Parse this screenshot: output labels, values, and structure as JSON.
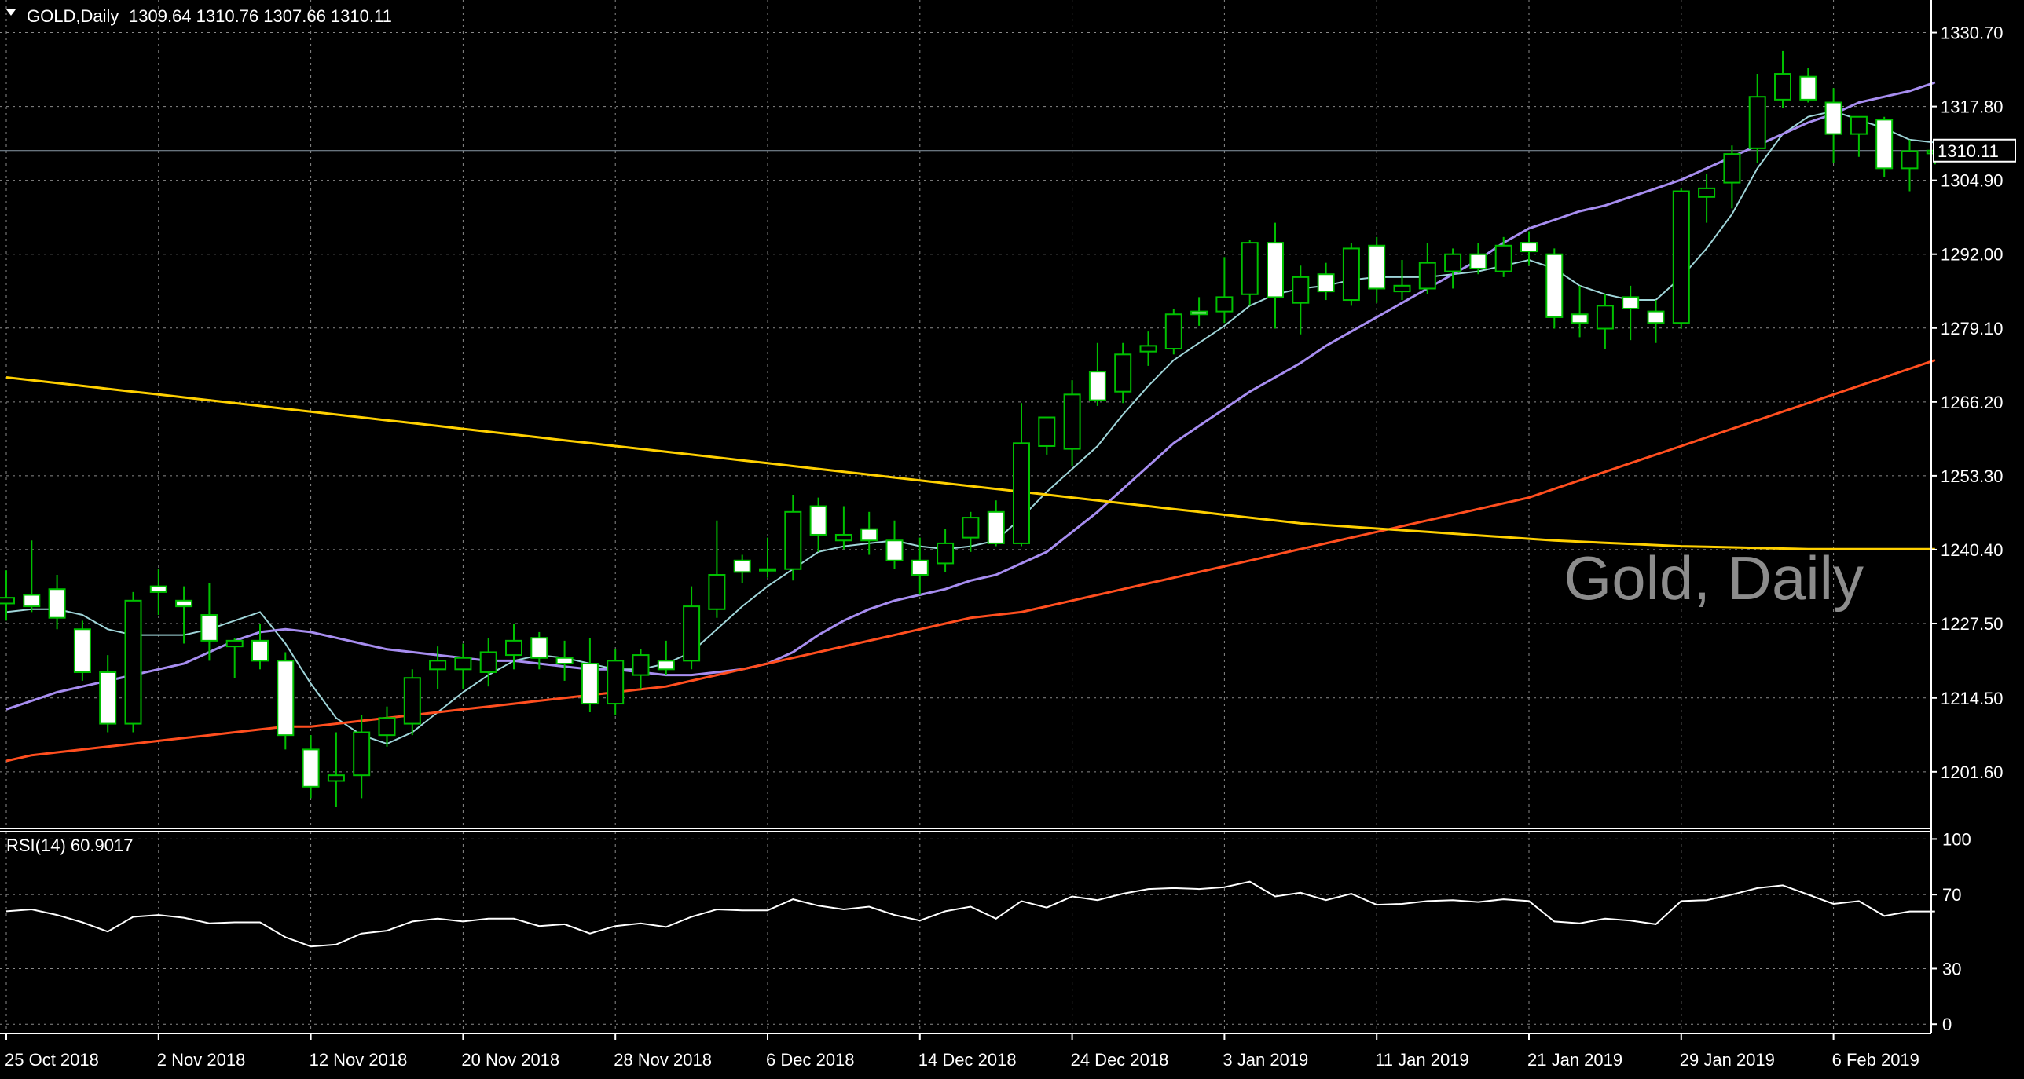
{
  "header": {
    "symbol_label": "GOLD,Daily",
    "ohlc_label": "1309.64 1310.76 1307.66 1310.11",
    "watermark": "Gold, Daily",
    "current_price_label": "1310.11"
  },
  "rsi_header": {
    "label": "RSI(14) 60.9017"
  },
  "colors": {
    "background": "#000000",
    "grid": "#8a8a8a",
    "axis_text": "#ffffff",
    "bull_candle": "#00c000",
    "bear_candle": "#ffffff",
    "ma_fast": "#9fd5d9",
    "ma_mid": "#a78df0",
    "ma_slow": "#ff4e1f",
    "ma_long": "#ffd000",
    "rsi_line": "#ffffff",
    "watermark": "#8c8c8c"
  },
  "chart_data": [
    {
      "type": "candlestick",
      "title": "GOLD,Daily",
      "ylim": [
        1191.7,
        1336.4
      ],
      "y_ticks": [
        "1330.70",
        "1317.80",
        "1304.90",
        "1292.00",
        "1279.10",
        "1266.20",
        "1253.30",
        "1240.40",
        "1227.50",
        "1214.50",
        "1201.60"
      ],
      "x_ticks": [
        {
          "index": 0,
          "label": "25 Oct 2018"
        },
        {
          "index": 6,
          "label": "2 Nov 2018"
        },
        {
          "index": 12,
          "label": "12 Nov 2018"
        },
        {
          "index": 18,
          "label": "20 Nov 2018"
        },
        {
          "index": 24,
          "label": "28 Nov 2018"
        },
        {
          "index": 30,
          "label": "6 Dec 2018"
        },
        {
          "index": 36,
          "label": "14 Dec 2018"
        },
        {
          "index": 42,
          "label": "24 Dec 2018"
        },
        {
          "index": 48,
          "label": "3 Jan 2019"
        },
        {
          "index": 54,
          "label": "11 Jan 2019"
        },
        {
          "index": 60,
          "label": "21 Jan 2019"
        },
        {
          "index": 66,
          "label": "29 Jan 2019"
        },
        {
          "index": 72,
          "label": "6 Feb 2019"
        }
      ],
      "ohlc": [
        [
          1231.0,
          1236.8,
          1228.0,
          1232.0
        ],
        [
          1232.5,
          1242.0,
          1229.5,
          1230.5
        ],
        [
          1233.5,
          1236.0,
          1226.5,
          1228.5
        ],
        [
          1226.5,
          1228.0,
          1217.5,
          1219.0
        ],
        [
          1219.0,
          1222.0,
          1208.5,
          1210.0
        ],
        [
          1210.0,
          1233.0,
          1208.5,
          1231.5
        ],
        [
          1234.0,
          1237.0,
          1229.0,
          1233.0
        ],
        [
          1231.5,
          1234.0,
          1224.0,
          1230.5
        ],
        [
          1229.0,
          1234.5,
          1221.0,
          1224.5
        ],
        [
          1223.5,
          1225.0,
          1218.0,
          1224.5
        ],
        [
          1224.5,
          1227.5,
          1219.5,
          1221.0
        ],
        [
          1221.0,
          1222.5,
          1205.5,
          1208.0
        ],
        [
          1205.5,
          1208.0,
          1197.0,
          1199.0
        ],
        [
          1200.0,
          1208.5,
          1195.5,
          1201.0
        ],
        [
          1201.0,
          1211.5,
          1197.0,
          1208.5
        ],
        [
          1208.0,
          1213.0,
          1206.0,
          1211.0
        ],
        [
          1210.0,
          1219.5,
          1208.0,
          1218.0
        ],
        [
          1219.5,
          1223.5,
          1216.0,
          1221.0
        ],
        [
          1219.5,
          1224.0,
          1216.0,
          1221.5
        ],
        [
          1219.0,
          1225.0,
          1216.5,
          1222.5
        ],
        [
          1222.0,
          1227.5,
          1219.5,
          1224.5
        ],
        [
          1225.0,
          1226.0,
          1219.5,
          1221.5
        ],
        [
          1221.5,
          1224.5,
          1217.5,
          1220.5
        ],
        [
          1220.5,
          1225.0,
          1212.0,
          1213.5
        ],
        [
          1213.5,
          1223.0,
          1211.5,
          1221.0
        ],
        [
          1218.5,
          1223.0,
          1216.0,
          1222.0
        ],
        [
          1221.0,
          1224.5,
          1218.5,
          1219.5
        ],
        [
          1221.0,
          1234.0,
          1219.5,
          1230.5
        ],
        [
          1230.0,
          1245.5,
          1228.5,
          1236.0
        ],
        [
          1238.5,
          1239.5,
          1234.5,
          1236.5
        ],
        [
          1237.0,
          1242.5,
          1235.5,
          1237.0
        ],
        [
          1237.0,
          1250.0,
          1235.0,
          1247.0
        ],
        [
          1248.0,
          1249.5,
          1240.0,
          1243.0
        ],
        [
          1242.0,
          1248.0,
          1240.5,
          1243.0
        ],
        [
          1244.0,
          1247.0,
          1239.5,
          1242.0
        ],
        [
          1242.0,
          1245.5,
          1237.0,
          1238.5
        ],
        [
          1238.5,
          1242.5,
          1232.5,
          1236.0
        ],
        [
          1238.0,
          1244.0,
          1236.5,
          1241.5
        ],
        [
          1242.5,
          1247.0,
          1240.0,
          1246.0
        ],
        [
          1247.0,
          1249.0,
          1241.0,
          1241.5
        ],
        [
          1241.5,
          1266.0,
          1241.0,
          1259.0
        ],
        [
          1258.5,
          1263.5,
          1257.0,
          1263.5
        ],
        [
          1258.0,
          1270.0,
          1255.0,
          1267.5
        ],
        [
          1271.5,
          1276.5,
          1265.5,
          1266.5
        ],
        [
          1268.0,
          1276.5,
          1266.0,
          1274.5
        ],
        [
          1275.0,
          1278.5,
          1272.5,
          1276.0
        ],
        [
          1275.5,
          1282.5,
          1274.5,
          1281.5
        ],
        [
          1282.0,
          1284.5,
          1279.5,
          1281.5
        ],
        [
          1282.0,
          1291.5,
          1280.0,
          1284.5
        ],
        [
          1285.0,
          1294.5,
          1283.0,
          1294.0
        ],
        [
          1294.0,
          1297.5,
          1279.0,
          1284.5
        ],
        [
          1283.5,
          1290.0,
          1278.0,
          1288.0
        ],
        [
          1288.5,
          1290.5,
          1284.0,
          1285.5
        ],
        [
          1284.0,
          1294.0,
          1283.0,
          1293.0
        ],
        [
          1293.5,
          1295.0,
          1283.5,
          1286.0
        ],
        [
          1285.5,
          1291.0,
          1284.0,
          1286.5
        ],
        [
          1286.0,
          1294.0,
          1285.0,
          1290.5
        ],
        [
          1289.0,
          1293.0,
          1286.0,
          1292.0
        ],
        [
          1292.0,
          1294.0,
          1288.5,
          1289.5
        ],
        [
          1289.0,
          1295.0,
          1288.0,
          1293.5
        ],
        [
          1294.0,
          1296.0,
          1290.0,
          1292.5
        ],
        [
          1292.0,
          1293.0,
          1279.0,
          1281.0
        ],
        [
          1281.5,
          1286.5,
          1277.5,
          1280.0
        ],
        [
          1279.0,
          1285.0,
          1275.5,
          1283.0
        ],
        [
          1284.5,
          1286.5,
          1277.0,
          1282.5
        ],
        [
          1282.0,
          1284.0,
          1276.5,
          1280.0
        ],
        [
          1280.0,
          1303.5,
          1279.0,
          1303.0
        ],
        [
          1302.0,
          1306.0,
          1297.5,
          1303.5
        ],
        [
          1304.5,
          1311.0,
          1300.0,
          1309.5
        ],
        [
          1310.5,
          1323.5,
          1308.0,
          1319.5
        ],
        [
          1319.0,
          1327.5,
          1317.5,
          1323.5
        ],
        [
          1323.0,
          1324.5,
          1318.5,
          1319.0
        ],
        [
          1318.5,
          1321.0,
          1308.0,
          1313.0
        ],
        [
          1313.0,
          1316.0,
          1309.0,
          1316.0
        ],
        [
          1315.5,
          1316.0,
          1305.5,
          1307.0
        ],
        [
          1307.0,
          1312.0,
          1303.0,
          1310.0
        ],
        [
          1309.6,
          1310.8,
          1307.7,
          1310.1
        ]
      ],
      "moving_averages": [
        {
          "color": "#9fd5d9",
          "values": [
            1229.5,
            1230.0,
            1230.0,
            1229.0,
            1226.5,
            1225.5,
            1225.5,
            1225.5,
            1226.5,
            1228.0,
            1229.5,
            1224.0,
            1217.0,
            1211.0,
            1208.0,
            1206.5,
            1208.5,
            1212.0,
            1215.5,
            1218.5,
            1221.0,
            1222.0,
            1221.5,
            1220.5,
            1219.5,
            1219.5,
            1220.5,
            1222.5,
            1226.5,
            1230.5,
            1234.0,
            1237.0,
            1240.0,
            1241.0,
            1241.5,
            1242.0,
            1241.0,
            1240.5,
            1241.0,
            1242.0,
            1246.0,
            1250.5,
            1254.5,
            1258.5,
            1264.0,
            1269.0,
            1273.5,
            1276.5,
            1279.5,
            1283.0,
            1285.0,
            1286.0,
            1286.5,
            1287.5,
            1288.0,
            1288.0,
            1288.0,
            1288.5,
            1289.0,
            1290.0,
            1291.0,
            1289.5,
            1286.5,
            1285.0,
            1284.0,
            1284.0,
            1288.0,
            1293.0,
            1299.0,
            1307.0,
            1313.0,
            1316.0,
            1317.0,
            1315.5,
            1314.0,
            1312.0,
            1311.5
          ]
        },
        {
          "color": "#a78df0",
          "values": [
            1212.5,
            1214.0,
            1215.5,
            1216.5,
            1217.5,
            1218.5,
            1219.5,
            1220.5,
            1222.5,
            1224.5,
            1226.0,
            1226.5,
            1226.0,
            1225.0,
            1224.0,
            1223.0,
            1222.5,
            1222.0,
            1221.5,
            1221.0,
            1221.0,
            1220.5,
            1220.0,
            1219.5,
            1219.5,
            1219.0,
            1218.5,
            1218.5,
            1219.0,
            1219.5,
            1220.5,
            1222.5,
            1225.5,
            1228.0,
            1230.0,
            1231.5,
            1232.5,
            1233.5,
            1235.0,
            1236.0,
            1238.0,
            1240.0,
            1243.5,
            1247.0,
            1251.0,
            1255.0,
            1259.0,
            1262.0,
            1265.0,
            1268.0,
            1270.5,
            1273.0,
            1276.0,
            1278.5,
            1281.0,
            1283.5,
            1286.0,
            1288.5,
            1291.0,
            1294.0,
            1296.5,
            1298.0,
            1299.5,
            1300.5,
            1302.0,
            1303.5,
            1305.0,
            1307.0,
            1309.0,
            1311.0,
            1313.0,
            1315.0,
            1316.5,
            1318.5,
            1319.5,
            1320.5,
            1322.0
          ]
        },
        {
          "color": "#ff4e1f",
          "values": [
            1203.5,
            1204.5,
            1205.0,
            1205.5,
            1206.0,
            1206.5,
            1207.0,
            1207.5,
            1208.0,
            1208.5,
            1209.0,
            1209.5,
            1209.5,
            1210.0,
            1210.5,
            1211.0,
            1211.5,
            1212.0,
            1212.5,
            1213.0,
            1213.5,
            1214.0,
            1214.5,
            1215.0,
            1215.5,
            1216.0,
            1216.5,
            1217.5,
            1218.5,
            1219.5,
            1220.5,
            1221.5,
            1222.5,
            1223.5,
            1224.5,
            1225.5,
            1226.5,
            1227.5,
            1228.5,
            1229.0,
            1229.5,
            1230.5,
            1231.5,
            1232.5,
            1233.5,
            1234.5,
            1235.5,
            1236.5,
            1237.5,
            1238.5,
            1239.5,
            1240.5,
            1241.5,
            1242.5,
            1243.5,
            1244.5,
            1245.5,
            1246.5,
            1247.5,
            1248.5,
            1249.5,
            1251.0,
            1252.5,
            1254.0,
            1255.5,
            1257.0,
            1258.5,
            1260.0,
            1261.5,
            1263.0,
            1264.5,
            1266.0,
            1267.5,
            1269.0,
            1270.5,
            1272.0,
            1273.5
          ]
        },
        {
          "color": "#ffd000",
          "values": [
            1270.5,
            1270.0,
            1269.5,
            1269.0,
            1268.5,
            1268.0,
            1267.5,
            1267.0,
            1266.5,
            1266.0,
            1265.5,
            1265.0,
            1264.5,
            1264.0,
            1263.5,
            1263.0,
            1262.5,
            1262.0,
            1261.5,
            1261.0,
            1260.5,
            1260.0,
            1259.5,
            1259.0,
            1258.5,
            1258.0,
            1257.5,
            1257.0,
            1256.5,
            1256.0,
            1255.5,
            1255.0,
            1254.5,
            1254.0,
            1253.5,
            1253.0,
            1252.5,
            1252.0,
            1251.5,
            1251.0,
            1250.5,
            1250.0,
            1249.5,
            1249.0,
            1248.5,
            1248.0,
            1247.5,
            1247.0,
            1246.5,
            1246.0,
            1245.5,
            1245.0,
            1244.7,
            1244.4,
            1244.1,
            1243.8,
            1243.5,
            1243.2,
            1242.9,
            1242.6,
            1242.3,
            1242.0,
            1241.8,
            1241.6,
            1241.4,
            1241.2,
            1241.0,
            1240.9,
            1240.8,
            1240.7,
            1240.6,
            1240.5,
            1240.5,
            1240.5,
            1240.5,
            1240.5,
            1240.5
          ]
        }
      ]
    },
    {
      "type": "line",
      "title": "RSI(14) 60.9017",
      "ylim": [
        -5,
        104
      ],
      "y_ticks": [
        "100",
        "70",
        "30",
        "0"
      ],
      "series": [
        {
          "values": [
            61.0,
            62.0,
            59.0,
            55.0,
            50.0,
            58.0,
            59.0,
            57.5,
            54.5,
            55.0,
            55.0,
            47.0,
            42.0,
            43.0,
            49.0,
            50.5,
            55.5,
            57.0,
            55.5,
            57.0,
            57.0,
            53.0,
            54.0,
            49.0,
            53.0,
            54.5,
            52.5,
            58.0,
            62.0,
            61.5,
            61.5,
            67.5,
            64.0,
            62.0,
            63.5,
            59.0,
            56.0,
            61.0,
            63.5,
            57.0,
            66.5,
            63.0,
            69.0,
            67.0,
            70.5,
            73.0,
            73.5,
            73.0,
            74.0,
            77.0,
            69.0,
            71.0,
            67.0,
            70.5,
            64.5,
            65.0,
            66.5,
            67.0,
            66.0,
            67.5,
            66.5,
            55.5,
            54.5,
            57.0,
            56.0,
            54.0,
            66.5,
            67.0,
            70.0,
            73.5,
            75.0,
            70.0,
            65.0,
            66.5,
            58.5,
            60.9,
            60.9
          ]
        }
      ]
    }
  ]
}
